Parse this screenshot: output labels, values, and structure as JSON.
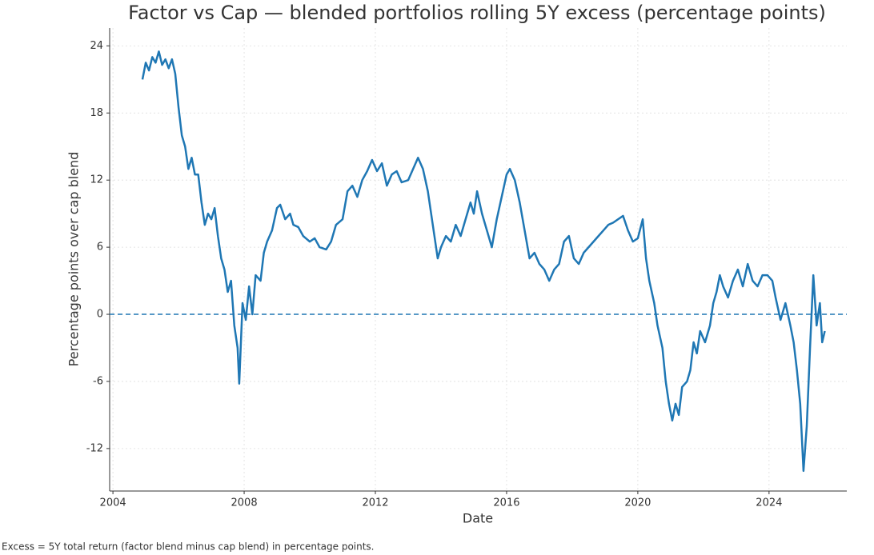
{
  "chart_data": {
    "type": "line",
    "title": "Factor vs Cap — blended portfolios rolling 5Y excess (percentage points)",
    "x_label": "Date",
    "y_label": "Percentage points over cap blend",
    "note": "Excess = 5Y total return (factor blend minus cap blend) in percentage points.",
    "x": [
      2004.9,
      2005.0,
      2005.1,
      2005.2,
      2005.3,
      2005.4,
      2005.5,
      2005.6,
      2005.7,
      2005.8,
      2005.9,
      2006.0,
      2006.1,
      2006.2,
      2006.3,
      2006.4,
      2006.5,
      2006.6,
      2006.7,
      2006.8,
      2006.9,
      2007.0,
      2007.1,
      2007.2,
      2007.3,
      2007.4,
      2007.5,
      2007.6,
      2007.7,
      2007.8,
      2007.85,
      2007.95,
      2008.05,
      2008.15,
      2008.25,
      2008.35,
      2008.5,
      2008.6,
      2008.7,
      2008.85,
      2009.0,
      2009.1,
      2009.25,
      2009.4,
      2009.5,
      2009.65,
      2009.8,
      2010.0,
      2010.15,
      2010.3,
      2010.5,
      2010.65,
      2010.8,
      2011.0,
      2011.15,
      2011.3,
      2011.45,
      2011.6,
      2011.75,
      2011.9,
      2012.05,
      2012.2,
      2012.35,
      2012.5,
      2012.65,
      2012.8,
      2013.0,
      2013.15,
      2013.3,
      2013.45,
      2013.6,
      2013.7,
      2013.8,
      2013.9,
      2014.0,
      2014.15,
      2014.3,
      2014.45,
      2014.6,
      2014.75,
      2014.9,
      2015.0,
      2015.1,
      2015.25,
      2015.4,
      2015.55,
      2015.7,
      2015.85,
      2016.0,
      2016.1,
      2016.25,
      2016.4,
      2016.55,
      2016.7,
      2016.85,
      2017.0,
      2017.15,
      2017.3,
      2017.45,
      2017.6,
      2017.75,
      2017.9,
      2018.05,
      2018.2,
      2018.35,
      2018.5,
      2018.65,
      2018.8,
      2018.95,
      2019.1,
      2019.25,
      2019.4,
      2019.55,
      2019.7,
      2019.85,
      2020.0,
      2020.15,
      2020.25,
      2020.35,
      2020.5,
      2020.6,
      2020.75,
      2020.85,
      2020.95,
      2021.05,
      2021.15,
      2021.25,
      2021.35,
      2021.5,
      2021.6,
      2021.7,
      2021.8,
      2021.9,
      2022.05,
      2022.2,
      2022.3,
      2022.4,
      2022.5,
      2022.6,
      2022.75,
      2022.9,
      2023.05,
      2023.2,
      2023.35,
      2023.5,
      2023.65,
      2023.8,
      2023.95,
      2024.1,
      2024.2,
      2024.35,
      2024.5,
      2024.65,
      2024.75,
      2024.85,
      2024.95,
      2025.05,
      2025.15,
      2025.25,
      2025.35,
      2025.45,
      2025.55,
      2025.62,
      2025.7
    ],
    "series": [
      {
        "name": "Excess",
        "color": "#1f77b4",
        "values": [
          21,
          22.5,
          21.8,
          23,
          22.5,
          23.5,
          22.3,
          22.8,
          22,
          22.8,
          21.5,
          18.5,
          16,
          15,
          13,
          14,
          12.5,
          12.5,
          10,
          8,
          9,
          8.5,
          9.5,
          7,
          5,
          4,
          2,
          3,
          -1,
          -3,
          -6.2,
          1,
          -0.5,
          2.5,
          0,
          3.5,
          3,
          5.5,
          6.5,
          7.5,
          9.5,
          9.8,
          8.5,
          9,
          8,
          7.8,
          7,
          6.5,
          6.8,
          6,
          5.8,
          6.5,
          8,
          8.5,
          11,
          11.5,
          10.5,
          12,
          12.8,
          13.8,
          12.8,
          13.5,
          11.5,
          12.5,
          12.8,
          11.8,
          12,
          13,
          14,
          13,
          11,
          9,
          7,
          5,
          6,
          7,
          6.5,
          8,
          7,
          8.5,
          10,
          9,
          11,
          9,
          7.5,
          6,
          8.5,
          10.5,
          12.5,
          13,
          12,
          10,
          7.5,
          5,
          5.5,
          4.5,
          4,
          3,
          4,
          4.5,
          6.5,
          7,
          5,
          4.5,
          5.5,
          6,
          6.5,
          7,
          7.5,
          8,
          8.2,
          8.5,
          8.8,
          7.5,
          6.5,
          6.8,
          8.5,
          5,
          3,
          1,
          -1,
          -3,
          -6,
          -8,
          -9.5,
          -8,
          -9,
          -6.5,
          -6,
          -5,
          -2.5,
          -3.5,
          -1.5,
          -2.5,
          -1,
          1,
          2,
          3.5,
          2.5,
          1.5,
          3,
          4,
          2.5,
          4.5,
          3,
          2.5,
          3.5,
          3.5,
          3,
          1.5,
          -0.5,
          1,
          -1,
          -2.5,
          -5,
          -8,
          -14,
          -10,
          -3,
          3.5,
          -1,
          1,
          -2.5,
          -1.5
        ]
      }
    ],
    "xlim": [
      2003.9,
      2026.37
    ],
    "ylim": [
      -15.8,
      25.6
    ],
    "xticks": [
      2004,
      2008,
      2012,
      2016,
      2020,
      2024
    ],
    "yticks": [
      24,
      18,
      12,
      6,
      0,
      -6,
      -12
    ],
    "grid": true,
    "reference_line": {
      "y": 0,
      "style": "dashed"
    }
  }
}
